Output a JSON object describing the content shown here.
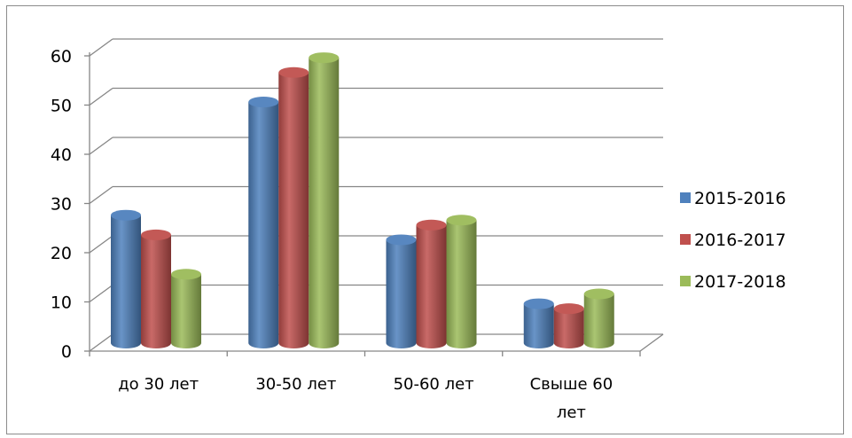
{
  "chart_data": {
    "type": "bar",
    "title": "",
    "xlabel": "",
    "ylabel": "",
    "ylim": [
      0,
      60
    ],
    "yticks": [
      0,
      10,
      20,
      30,
      40,
      50,
      60
    ],
    "grid": true,
    "legend_position": "right",
    "categories": [
      [
        "до 30 лет"
      ],
      [
        "30-50 лет"
      ],
      [
        "50-60 лет"
      ],
      [
        "Свыше 60",
        "лет"
      ]
    ],
    "series": [
      {
        "name": "2015-2016",
        "color": "#4f81bd",
        "values": [
          26,
          49,
          21,
          8
        ]
      },
      {
        "name": "2016-2017",
        "color": "#c0504d",
        "values": [
          22,
          55,
          24,
          7
        ]
      },
      {
        "name": "2017-2018",
        "color": "#9bbb59",
        "values": [
          14,
          58,
          25,
          10
        ]
      }
    ]
  }
}
